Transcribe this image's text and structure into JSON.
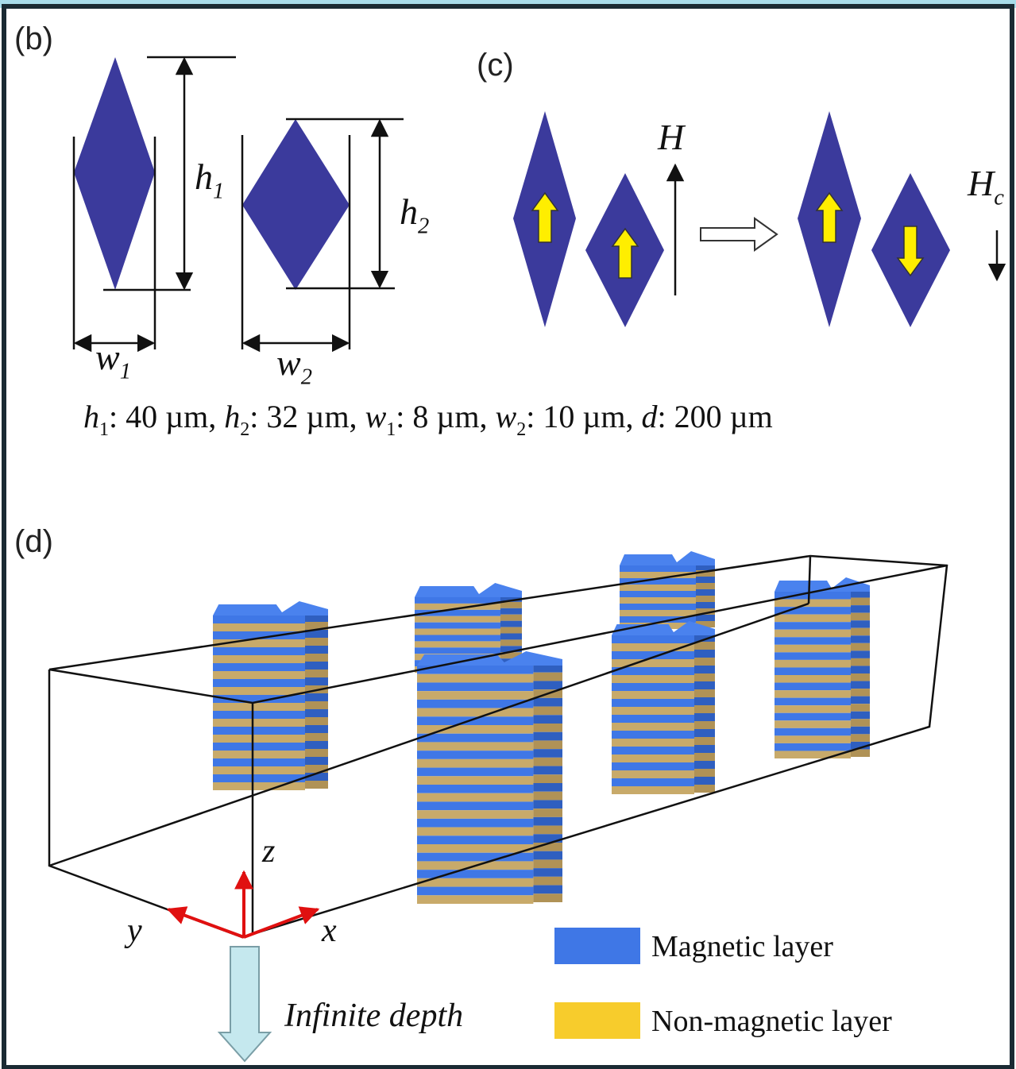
{
  "panel_b": {
    "label": "(b)",
    "h1": {
      "symbol": "h",
      "sub": "1"
    },
    "h2": {
      "symbol": "h",
      "sub": "2"
    },
    "w1": {
      "symbol": "w",
      "sub": "1"
    },
    "w2": {
      "symbol": "w",
      "sub": "2"
    }
  },
  "caption": {
    "segments": [
      {
        "text": "h",
        "italic": true
      },
      {
        "text": "1",
        "sub": true
      },
      {
        "text": ": 40 µm, "
      },
      {
        "text": "h",
        "italic": true
      },
      {
        "text": "2",
        "sub": true
      },
      {
        "text": ": 32 µm, "
      },
      {
        "text": "w",
        "italic": true
      },
      {
        "text": "1",
        "sub": true
      },
      {
        "text": ": 8 µm, "
      },
      {
        "text": "w",
        "italic": true
      },
      {
        "text": "2",
        "sub": true
      },
      {
        "text": ": 10 µm, "
      },
      {
        "text": "d",
        "italic": true
      },
      {
        "text": ": 200 µm"
      }
    ]
  },
  "panel_c": {
    "label": "(c)",
    "field": {
      "symbol": "H"
    },
    "coercive_field": {
      "symbol": "H",
      "sub": "c"
    }
  },
  "panel_d": {
    "label": "(d)",
    "axes": {
      "x": "x",
      "y": "y",
      "z": "z"
    },
    "depth_label": "Infinite depth",
    "legend": [
      {
        "name": "Magnetic layer",
        "color": "#3f77e6"
      },
      {
        "name": "Non-magnetic layer",
        "color": "#f7cc2c"
      }
    ]
  }
}
